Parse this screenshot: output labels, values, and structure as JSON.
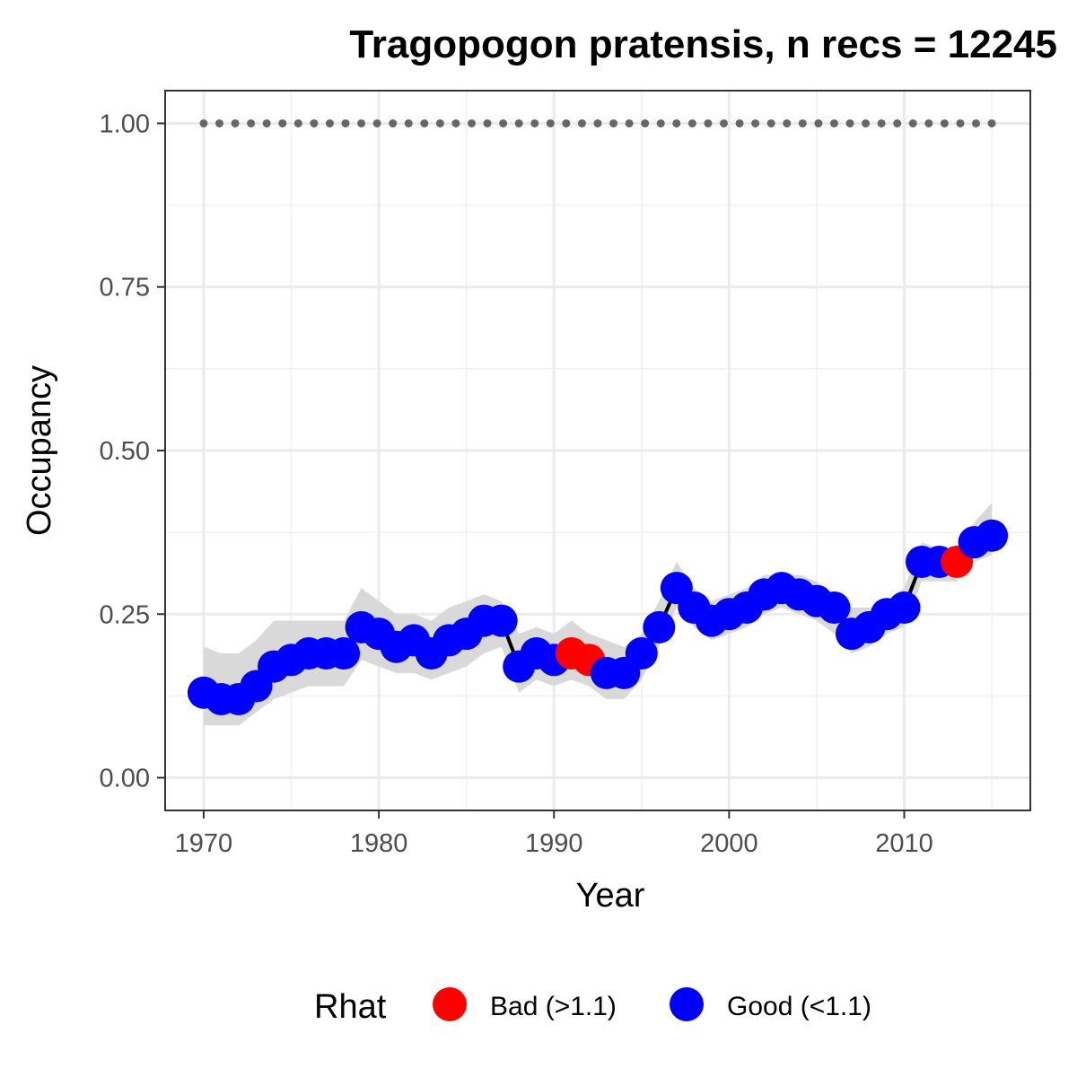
{
  "chart_data": {
    "type": "line",
    "title": "Tragopogon pratensis, n recs = 12245",
    "xlabel": "Year",
    "ylabel": "Occupancy",
    "xlim": [
      1967.8,
      2017.2
    ],
    "ylim": [
      -0.05,
      1.05
    ],
    "x_ticks": [
      1970,
      1980,
      1990,
      2000,
      2010
    ],
    "x_tick_labels": [
      "1970",
      "1980",
      "1990",
      "2000",
      "2010"
    ],
    "y_ticks": [
      0,
      0.25,
      0.5,
      0.75,
      1.0
    ],
    "y_tick_labels": [
      "0.00",
      "0.25",
      "0.50",
      "0.75",
      "1.00"
    ],
    "grid": true,
    "legend_position": "bottom",
    "legend": {
      "title": "Rhat",
      "items": [
        {
          "key": "bad",
          "label": "Bad (>1.1)",
          "color": "#ff0000"
        },
        {
          "key": "good",
          "label": "Good (<1.1)",
          "color": "#0000ff"
        }
      ]
    },
    "colors": {
      "bad": "#ff0000",
      "good": "#0000ff",
      "ribbon": "#d9d9d9",
      "line": "#000000",
      "reference": "#666666"
    },
    "reference_line": {
      "y": 1.0,
      "style": "dotted"
    },
    "x": [
      1970,
      1971,
      1972,
      1973,
      1974,
      1975,
      1976,
      1977,
      1978,
      1979,
      1980,
      1981,
      1982,
      1983,
      1984,
      1985,
      1986,
      1987,
      1988,
      1989,
      1990,
      1991,
      1992,
      1993,
      1994,
      1995,
      1996,
      1997,
      1998,
      1999,
      2000,
      2001,
      2002,
      2003,
      2004,
      2005,
      2006,
      2007,
      2008,
      2009,
      2010,
      2011,
      2012,
      2013,
      2014,
      2015
    ],
    "occupancy": [
      0.13,
      0.12,
      0.12,
      0.14,
      0.17,
      0.18,
      0.19,
      0.19,
      0.19,
      0.23,
      0.22,
      0.2,
      0.21,
      0.19,
      0.21,
      0.22,
      0.24,
      0.24,
      0.17,
      0.19,
      0.18,
      0.19,
      0.18,
      0.16,
      0.16,
      0.19,
      0.23,
      0.29,
      0.26,
      0.24,
      0.25,
      0.26,
      0.28,
      0.29,
      0.28,
      0.27,
      0.26,
      0.22,
      0.23,
      0.25,
      0.26,
      0.33,
      0.33,
      0.33,
      0.36,
      0.37
    ],
    "lower": [
      0.08,
      0.08,
      0.08,
      0.1,
      0.12,
      0.13,
      0.14,
      0.14,
      0.14,
      0.18,
      0.17,
      0.16,
      0.16,
      0.15,
      0.16,
      0.17,
      0.19,
      0.2,
      0.13,
      0.15,
      0.14,
      0.15,
      0.14,
      0.12,
      0.12,
      0.15,
      0.2,
      0.26,
      0.23,
      0.21,
      0.22,
      0.23,
      0.25,
      0.26,
      0.25,
      0.24,
      0.22,
      0.19,
      0.2,
      0.22,
      0.23,
      0.3,
      0.3,
      0.3,
      0.33,
      0.34
    ],
    "upper": [
      0.2,
      0.19,
      0.19,
      0.21,
      0.24,
      0.24,
      0.24,
      0.24,
      0.24,
      0.29,
      0.27,
      0.25,
      0.25,
      0.24,
      0.26,
      0.27,
      0.28,
      0.27,
      0.22,
      0.23,
      0.22,
      0.24,
      0.22,
      0.21,
      0.2,
      0.22,
      0.27,
      0.33,
      0.29,
      0.27,
      0.28,
      0.29,
      0.31,
      0.31,
      0.31,
      0.3,
      0.28,
      0.26,
      0.26,
      0.27,
      0.29,
      0.36,
      0.35,
      0.35,
      0.39,
      0.42
    ],
    "rhat": [
      "good",
      "good",
      "good",
      "good",
      "good",
      "good",
      "good",
      "good",
      "good",
      "good",
      "good",
      "good",
      "good",
      "good",
      "good",
      "good",
      "good",
      "good",
      "good",
      "good",
      "good",
      "bad",
      "bad",
      "good",
      "good",
      "good",
      "good",
      "good",
      "good",
      "good",
      "good",
      "good",
      "good",
      "good",
      "good",
      "good",
      "good",
      "good",
      "good",
      "good",
      "good",
      "good",
      "good",
      "bad",
      "good",
      "good"
    ]
  }
}
